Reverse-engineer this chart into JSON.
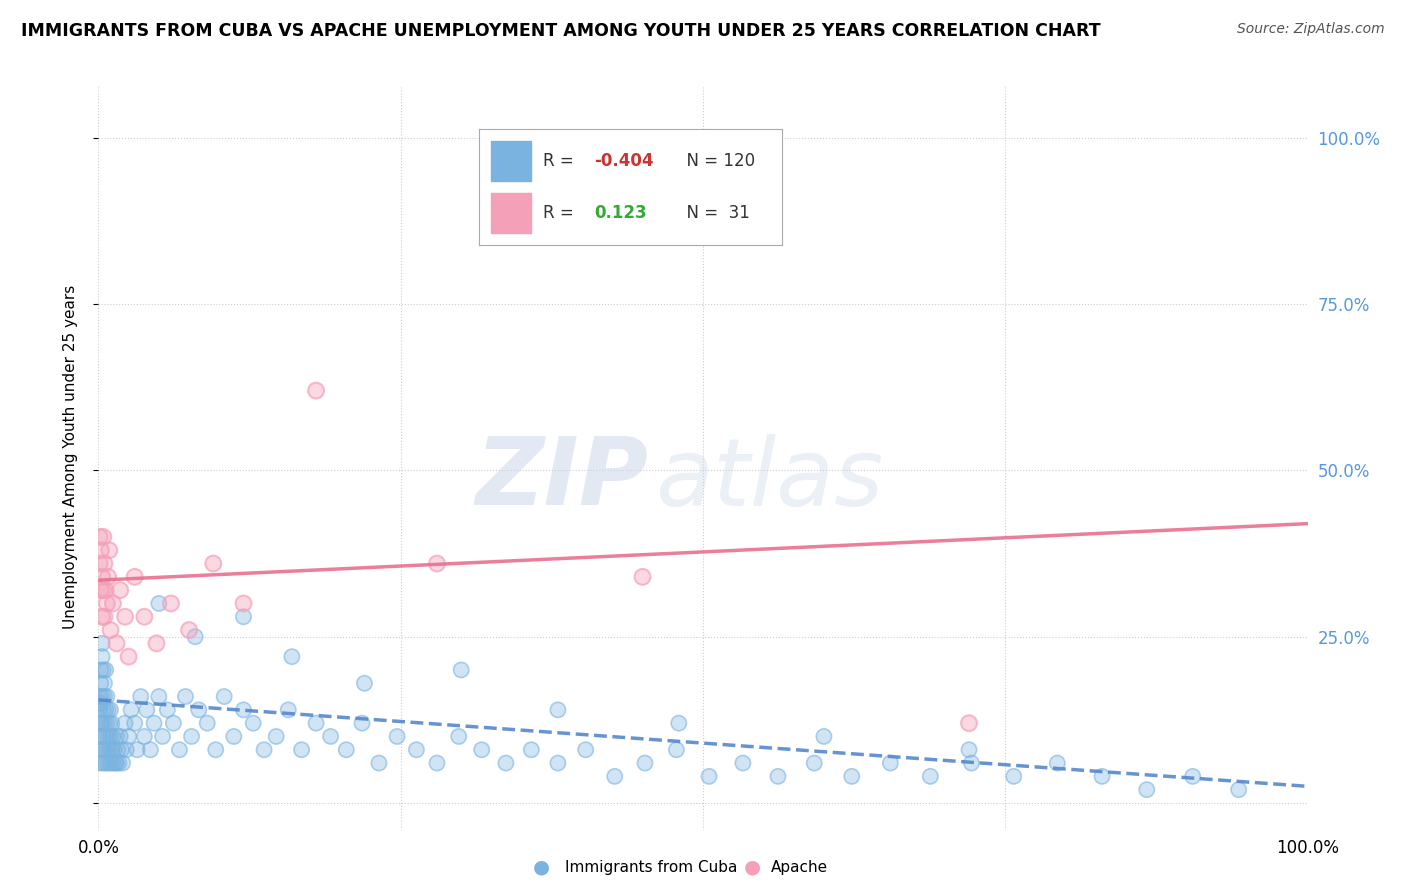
{
  "title": "IMMIGRANTS FROM CUBA VS APACHE UNEMPLOYMENT AMONG YOUTH UNDER 25 YEARS CORRELATION CHART",
  "source": "Source: ZipAtlas.com",
  "ylabel": "Unemployment Among Youth under 25 years",
  "xlim": [
    0.0,
    1.0
  ],
  "ylim": [
    -0.04,
    1.08
  ],
  "blue_color": "#7ab3e0",
  "pink_color": "#f4a0b8",
  "blue_trend_color": "#5588cc",
  "pink_trend_color": "#e87090",
  "blue_label": "Immigrants from Cuba",
  "pink_label": "Apache",
  "blue_R": -0.404,
  "blue_N": 120,
  "pink_R": 0.123,
  "pink_N": 31,
  "watermark_zip": "ZIP",
  "watermark_atlas": "atlas",
  "background_color": "#ffffff",
  "legend_R_blue_color": "#cc4444",
  "legend_R_pink_color": "#44aa44",
  "blue_scatter_x": [
    0.001,
    0.001,
    0.001,
    0.001,
    0.002,
    0.002,
    0.002,
    0.002,
    0.002,
    0.003,
    0.003,
    0.003,
    0.003,
    0.003,
    0.004,
    0.004,
    0.004,
    0.004,
    0.005,
    0.005,
    0.005,
    0.005,
    0.006,
    0.006,
    0.006,
    0.006,
    0.007,
    0.007,
    0.007,
    0.008,
    0.008,
    0.008,
    0.009,
    0.009,
    0.01,
    0.01,
    0.01,
    0.011,
    0.011,
    0.012,
    0.012,
    0.013,
    0.014,
    0.015,
    0.015,
    0.016,
    0.017,
    0.018,
    0.019,
    0.02,
    0.022,
    0.023,
    0.025,
    0.027,
    0.03,
    0.032,
    0.035,
    0.038,
    0.04,
    0.043,
    0.046,
    0.05,
    0.053,
    0.057,
    0.062,
    0.067,
    0.072,
    0.077,
    0.083,
    0.09,
    0.097,
    0.104,
    0.112,
    0.12,
    0.128,
    0.137,
    0.147,
    0.157,
    0.168,
    0.18,
    0.192,
    0.205,
    0.218,
    0.232,
    0.247,
    0.263,
    0.28,
    0.298,
    0.317,
    0.337,
    0.358,
    0.38,
    0.403,
    0.427,
    0.452,
    0.478,
    0.505,
    0.533,
    0.562,
    0.592,
    0.623,
    0.655,
    0.688,
    0.722,
    0.757,
    0.793,
    0.83,
    0.867,
    0.905,
    0.943,
    0.05,
    0.08,
    0.12,
    0.16,
    0.22,
    0.3,
    0.38,
    0.48,
    0.6,
    0.72
  ],
  "blue_scatter_y": [
    0.14,
    0.1,
    0.06,
    0.16,
    0.18,
    0.12,
    0.08,
    0.2,
    0.15,
    0.22,
    0.16,
    0.12,
    0.08,
    0.24,
    0.2,
    0.14,
    0.1,
    0.06,
    0.18,
    0.12,
    0.08,
    0.16,
    0.2,
    0.14,
    0.1,
    0.06,
    0.16,
    0.12,
    0.08,
    0.14,
    0.1,
    0.06,
    0.12,
    0.08,
    0.14,
    0.1,
    0.06,
    0.12,
    0.08,
    0.1,
    0.06,
    0.08,
    0.06,
    0.1,
    0.06,
    0.08,
    0.06,
    0.1,
    0.08,
    0.06,
    0.12,
    0.08,
    0.1,
    0.14,
    0.12,
    0.08,
    0.16,
    0.1,
    0.14,
    0.08,
    0.12,
    0.16,
    0.1,
    0.14,
    0.12,
    0.08,
    0.16,
    0.1,
    0.14,
    0.12,
    0.08,
    0.16,
    0.1,
    0.14,
    0.12,
    0.08,
    0.1,
    0.14,
    0.08,
    0.12,
    0.1,
    0.08,
    0.12,
    0.06,
    0.1,
    0.08,
    0.06,
    0.1,
    0.08,
    0.06,
    0.08,
    0.06,
    0.08,
    0.04,
    0.06,
    0.08,
    0.04,
    0.06,
    0.04,
    0.06,
    0.04,
    0.06,
    0.04,
    0.06,
    0.04,
    0.06,
    0.04,
    0.02,
    0.04,
    0.02,
    0.3,
    0.25,
    0.28,
    0.22,
    0.18,
    0.2,
    0.14,
    0.12,
    0.1,
    0.08
  ],
  "pink_scatter_x": [
    0.001,
    0.001,
    0.002,
    0.002,
    0.003,
    0.003,
    0.004,
    0.004,
    0.005,
    0.005,
    0.006,
    0.007,
    0.008,
    0.009,
    0.01,
    0.012,
    0.015,
    0.018,
    0.022,
    0.025,
    0.03,
    0.038,
    0.048,
    0.06,
    0.075,
    0.095,
    0.12,
    0.18,
    0.28,
    0.45,
    0.72
  ],
  "pink_scatter_y": [
    0.4,
    0.36,
    0.32,
    0.38,
    0.28,
    0.34,
    0.4,
    0.32,
    0.36,
    0.28,
    0.32,
    0.3,
    0.34,
    0.38,
    0.26,
    0.3,
    0.24,
    0.32,
    0.28,
    0.22,
    0.34,
    0.28,
    0.24,
    0.3,
    0.26,
    0.36,
    0.3,
    0.62,
    0.36,
    0.34,
    0.12
  ],
  "pink_trend_start_y": 0.335,
  "pink_trend_end_y": 0.42,
  "blue_trend_start_y": 0.155,
  "blue_trend_end_y": 0.025
}
